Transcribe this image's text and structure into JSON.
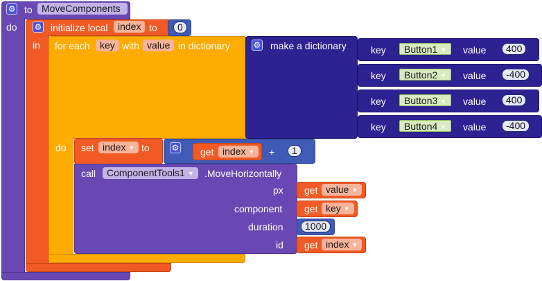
{
  "procedure": {
    "to_label": "to",
    "name": "MoveComponents",
    "do_label": "do"
  },
  "init_local": {
    "label": "initialize local",
    "var_name": "index",
    "to_label": "to",
    "value": "0",
    "in_label": "in"
  },
  "for_each": {
    "label": "for each",
    "key_name": "key",
    "with_label": "with",
    "value_name": "value",
    "in_dict_label": "in dictionary",
    "do_label": "do"
  },
  "dictionary": {
    "label": "make a dictionary",
    "pairs": [
      {
        "key_label": "key",
        "key": "Button1",
        "value_label": "value",
        "value": "400"
      },
      {
        "key_label": "key",
        "key": "Button2",
        "value_label": "value",
        "value": "-400"
      },
      {
        "key_label": "key",
        "key": "Button3",
        "value_label": "value",
        "value": "400"
      },
      {
        "key_label": "key",
        "key": "Button4",
        "value_label": "value",
        "value": "-400"
      }
    ]
  },
  "set_block": {
    "label": "set",
    "var_name": "index",
    "to_label": "to",
    "get_label": "get",
    "get_var": "index",
    "op": "+",
    "addend": "1"
  },
  "call_block": {
    "label": "call",
    "component": "ComponentTools1",
    "method": ".MoveHorizontally",
    "params": {
      "px_label": "px",
      "px_get": "get",
      "px_var": "value",
      "component_label": "component",
      "component_get": "get",
      "component_var": "key",
      "duration_label": "duration",
      "duration_value": "1000",
      "id_label": "id",
      "id_get": "get",
      "id_var": "index"
    }
  },
  "colors": {
    "procedure": "#6a48b4",
    "variable": "#f15a24",
    "control": "#ffab00",
    "dictionary": "#2e2192",
    "math": "#3f5bb5",
    "component": "#8fc15d"
  }
}
